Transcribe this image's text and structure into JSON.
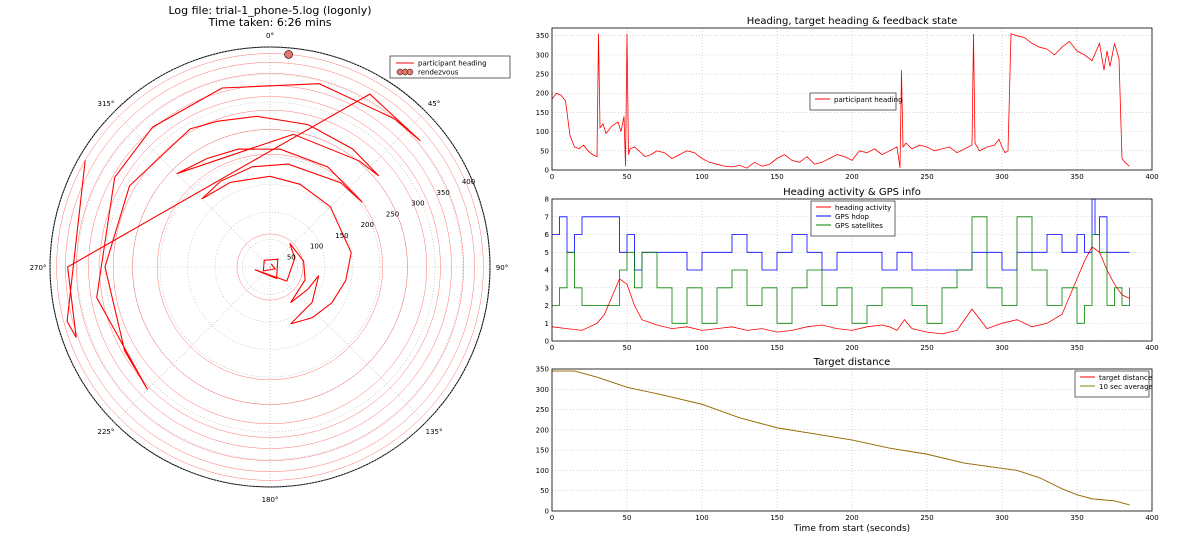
{
  "polar": {
    "title_line1": "Log file: trial-1_phone-5.log (logonly)",
    "title_line2": "Time taken: 6:26 mins",
    "angle_labels": [
      "0°",
      "45°",
      "90°",
      "135°",
      "180°",
      "225°",
      "270°",
      "315°"
    ],
    "radial_labels": [
      "50",
      "100",
      "150",
      "200",
      "250",
      "300",
      "350",
      "400"
    ],
    "legend": [
      "participant heading",
      "rendezvous"
    ],
    "colors": {
      "track": "#ff0000",
      "rendezvous": "#e8766f"
    }
  },
  "panels": {
    "heading_title": "Heading, target heading & feedback state",
    "activity_title": "Heading activity & GPS info",
    "distance_title": "Target distance",
    "xlabel": "Time from start (seconds)"
  },
  "chart_data": [
    {
      "type": "line",
      "id": "polar",
      "projection": "polar",
      "title": "Log file: trial-1_phone-5.log (logonly)",
      "subtitle": "Time taken: 6:26 mins",
      "rlim": [
        0,
        400
      ],
      "r_ticks": [
        50,
        100,
        150,
        200,
        250,
        300,
        350,
        400
      ],
      "theta_ticks": [
        "0°",
        "45°",
        "90°",
        "135°",
        "180°",
        "225°",
        "270°",
        "315°"
      ],
      "theta_direction": "clockwise",
      "theta_zero": "top",
      "series": [
        {
          "name": "participant heading",
          "color": "#ff0000",
          "r_theta": [
            [
              6,
              20
            ],
            [
              10,
              110
            ],
            [
              14,
              240
            ],
            [
              16,
              320
            ],
            [
              20,
              45
            ],
            [
              24,
              150
            ],
            [
              28,
              260
            ],
            [
              40,
              130
            ],
            [
              48,
              70
            ],
            [
              56,
              40
            ],
            [
              62,
              80
            ],
            [
              68,
              110
            ],
            [
              75,
              150
            ],
            [
              80,
              120
            ],
            [
              90,
              100
            ],
            [
              100,
              130
            ],
            [
              110,
              160
            ],
            [
              120,
              140
            ],
            [
              130,
              120
            ],
            [
              140,
              100
            ],
            [
              150,
              80
            ],
            [
              155,
              45
            ],
            [
              160,
              20
            ],
            [
              165,
              0
            ],
            [
              170,
              335
            ],
            [
              175,
              315
            ],
            [
              180,
              330
            ],
            [
              185,
              350
            ],
            [
              190,
              10
            ],
            [
              200,
              40
            ],
            [
              205,
              55
            ],
            [
              210,
              30
            ],
            [
              215,
              5
            ],
            [
              222,
              345
            ],
            [
              228,
              330
            ],
            [
              240,
              315
            ],
            [
              245,
              10
            ],
            [
              252,
              40
            ],
            [
              258,
              50
            ],
            [
              262,
              35
            ],
            [
              268,
              15
            ],
            [
              275,
              355
            ],
            [
              282,
              340
            ],
            [
              290,
              330
            ],
            [
              295,
              300
            ],
            [
              300,
              270
            ],
            [
              305,
              240
            ],
            [
              315,
              225
            ],
            [
              320,
              260
            ],
            [
              326,
              300
            ],
            [
              332,
              320
            ],
            [
              337,
              345
            ],
            [
              345,
              15
            ],
            [
              352,
              40
            ],
            [
              357,
              50
            ],
            [
              363,
              30
            ],
            [
              368,
              270
            ],
            [
              375,
              250
            ],
            [
              382,
              255
            ],
            [
              388,
              300
            ]
          ]
        },
        {
          "name": "rendezvous",
          "color": "#e8766f",
          "points": [
            [
              388,
              5
            ]
          ]
        }
      ],
      "legend": "top-right",
      "grid": true
    },
    {
      "type": "line",
      "id": "heading",
      "title": "Heading, target heading & feedback state",
      "xlim": [
        0,
        400
      ],
      "ylim": [
        0,
        370
      ],
      "x_ticks": [
        0,
        50,
        100,
        150,
        200,
        250,
        300,
        350,
        400
      ],
      "y_ticks": [
        0,
        50,
        100,
        150,
        200,
        250,
        300,
        350
      ],
      "legend": "center",
      "grid": true,
      "series": [
        {
          "name": "participant heading",
          "color": "#ff0000",
          "x": [
            0,
            3,
            6,
            9,
            12,
            15,
            18,
            21,
            24,
            27,
            30,
            31,
            32,
            34,
            36,
            40,
            44,
            46,
            48,
            49,
            50,
            51,
            52,
            55,
            58,
            62,
            66,
            70,
            75,
            80,
            85,
            90,
            95,
            100,
            105,
            110,
            115,
            120,
            125,
            130,
            135,
            140,
            145,
            150,
            155,
            160,
            165,
            170,
            175,
            180,
            185,
            190,
            195,
            200,
            205,
            210,
            215,
            220,
            225,
            230,
            232,
            233,
            234,
            236,
            240,
            245,
            250,
            255,
            260,
            265,
            270,
            275,
            280,
            281,
            282,
            285,
            290,
            295,
            298,
            300,
            302,
            304,
            306,
            310,
            315,
            320,
            325,
            330,
            335,
            340,
            345,
            350,
            355,
            360,
            365,
            368,
            370,
            372,
            375,
            378,
            380,
            382,
            385
          ],
          "y": [
            185,
            200,
            195,
            180,
            90,
            60,
            55,
            65,
            50,
            40,
            35,
            355,
            110,
            120,
            95,
            115,
            125,
            100,
            140,
            10,
            355,
            40,
            55,
            60,
            50,
            35,
            40,
            50,
            45,
            30,
            40,
            50,
            45,
            30,
            20,
            15,
            10,
            8,
            12,
            5,
            20,
            10,
            15,
            30,
            40,
            25,
            20,
            35,
            15,
            20,
            30,
            40,
            35,
            25,
            50,
            45,
            55,
            40,
            50,
            60,
            5,
            260,
            60,
            70,
            55,
            65,
            60,
            50,
            55,
            60,
            45,
            55,
            65,
            355,
            70,
            50,
            60,
            65,
            80,
            60,
            45,
            50,
            355,
            350,
            345,
            330,
            320,
            315,
            300,
            320,
            335,
            310,
            300,
            285,
            330,
            260,
            310,
            270,
            330,
            290,
            30,
            20,
            10
          ]
        }
      ]
    },
    {
      "type": "line",
      "id": "activity",
      "title": "Heading activity & GPS info",
      "xlim": [
        0,
        400
      ],
      "ylim": [
        0,
        8
      ],
      "x_ticks": [
        0,
        50,
        100,
        150,
        200,
        250,
        300,
        350,
        400
      ],
      "y_ticks": [
        0,
        1,
        2,
        3,
        4,
        5,
        6,
        7,
        8
      ],
      "legend": "top-center",
      "grid": true,
      "series": [
        {
          "name": "heading activity",
          "color": "#ff0000",
          "x": [
            0,
            10,
            20,
            30,
            35,
            40,
            45,
            50,
            55,
            60,
            70,
            80,
            90,
            100,
            110,
            120,
            130,
            140,
            150,
            160,
            170,
            180,
            190,
            200,
            210,
            220,
            225,
            230,
            235,
            240,
            250,
            260,
            270,
            280,
            290,
            300,
            310,
            320,
            330,
            340,
            345,
            350,
            355,
            360,
            365,
            370,
            375,
            380,
            385
          ],
          "y": [
            0.8,
            0.7,
            0.6,
            1.0,
            1.5,
            2.5,
            3.5,
            3.2,
            2.0,
            1.2,
            0.9,
            0.7,
            0.8,
            0.6,
            0.7,
            0.8,
            0.6,
            0.7,
            0.5,
            0.6,
            0.8,
            0.9,
            0.7,
            0.6,
            0.8,
            0.9,
            0.8,
            0.6,
            1.2,
            0.7,
            0.5,
            0.4,
            0.6,
            1.8,
            0.7,
            1.0,
            1.2,
            0.8,
            1.0,
            1.5,
            2.5,
            3.5,
            4.5,
            5.3,
            5.0,
            4.0,
            3.2,
            2.6,
            2.4
          ]
        },
        {
          "name": "GPS hdop",
          "color": "#0000ff",
          "x": [
            0,
            5,
            10,
            15,
            20,
            30,
            40,
            45,
            50,
            55,
            60,
            70,
            80,
            90,
            100,
            110,
            120,
            130,
            140,
            150,
            160,
            170,
            180,
            190,
            200,
            210,
            220,
            230,
            240,
            250,
            260,
            270,
            280,
            290,
            300,
            310,
            320,
            330,
            340,
            350,
            355,
            360,
            362,
            365,
            370,
            375,
            380,
            385
          ],
          "y": [
            6,
            7,
            5,
            6,
            7,
            7,
            7,
            5,
            6,
            4,
            5,
            5,
            5,
            4,
            5,
            5,
            6,
            5,
            4,
            5,
            6,
            5,
            4,
            5,
            5,
            5,
            4,
            5,
            4,
            4,
            4,
            4,
            5,
            5,
            4,
            5,
            5,
            6,
            5,
            6,
            5,
            8,
            6,
            7,
            5,
            5,
            5,
            5
          ]
        },
        {
          "name": "GPS satellites",
          "color": "#008000",
          "x": [
            0,
            5,
            10,
            15,
            20,
            30,
            40,
            45,
            50,
            55,
            60,
            70,
            80,
            90,
            100,
            110,
            120,
            130,
            140,
            150,
            160,
            170,
            180,
            190,
            200,
            210,
            220,
            230,
            240,
            250,
            260,
            270,
            280,
            290,
            300,
            310,
            320,
            330,
            340,
            350,
            355,
            360,
            365,
            370,
            375,
            380,
            385
          ],
          "y": [
            2,
            3,
            5,
            3,
            2,
            2,
            2,
            4,
            5,
            3,
            5,
            3,
            1,
            3,
            1,
            3,
            4,
            2,
            3,
            1,
            3,
            4,
            2,
            3,
            1,
            2,
            3,
            3,
            2,
            1,
            3,
            4,
            7,
            3,
            2,
            7,
            4,
            2,
            3,
            1,
            2,
            6,
            5,
            2,
            3,
            2,
            3
          ]
        }
      ]
    },
    {
      "type": "line",
      "id": "distance",
      "title": "Target distance",
      "xlabel": "Time from start (seconds)",
      "xlim": [
        0,
        400
      ],
      "ylim": [
        0,
        350
      ],
      "x_ticks": [
        0,
        50,
        100,
        150,
        200,
        250,
        300,
        350,
        400
      ],
      "y_ticks": [
        0,
        50,
        100,
        150,
        200,
        250,
        300,
        350
      ],
      "legend": "top-right",
      "grid": true,
      "series": [
        {
          "name": "target distance",
          "color": "#ff0000",
          "x": [
            0,
            15,
            30,
            50,
            75,
            100,
            125,
            150,
            175,
            200,
            225,
            250,
            275,
            300,
            310,
            325,
            340,
            350,
            360,
            375,
            385
          ],
          "y": [
            345,
            345,
            330,
            305,
            285,
            263,
            230,
            205,
            190,
            175,
            155,
            140,
            118,
            105,
            100,
            82,
            55,
            40,
            30,
            25,
            15
          ]
        },
        {
          "name": "10 sec average",
          "color": "#808000",
          "x": [
            0,
            15,
            30,
            50,
            75,
            100,
            125,
            150,
            175,
            200,
            225,
            250,
            275,
            300,
            310,
            325,
            340,
            350,
            360,
            375,
            385
          ],
          "y": [
            345,
            345,
            330,
            305,
            285,
            263,
            230,
            205,
            190,
            175,
            155,
            140,
            118,
            105,
            100,
            82,
            55,
            40,
            30,
            25,
            15
          ]
        }
      ]
    }
  ]
}
